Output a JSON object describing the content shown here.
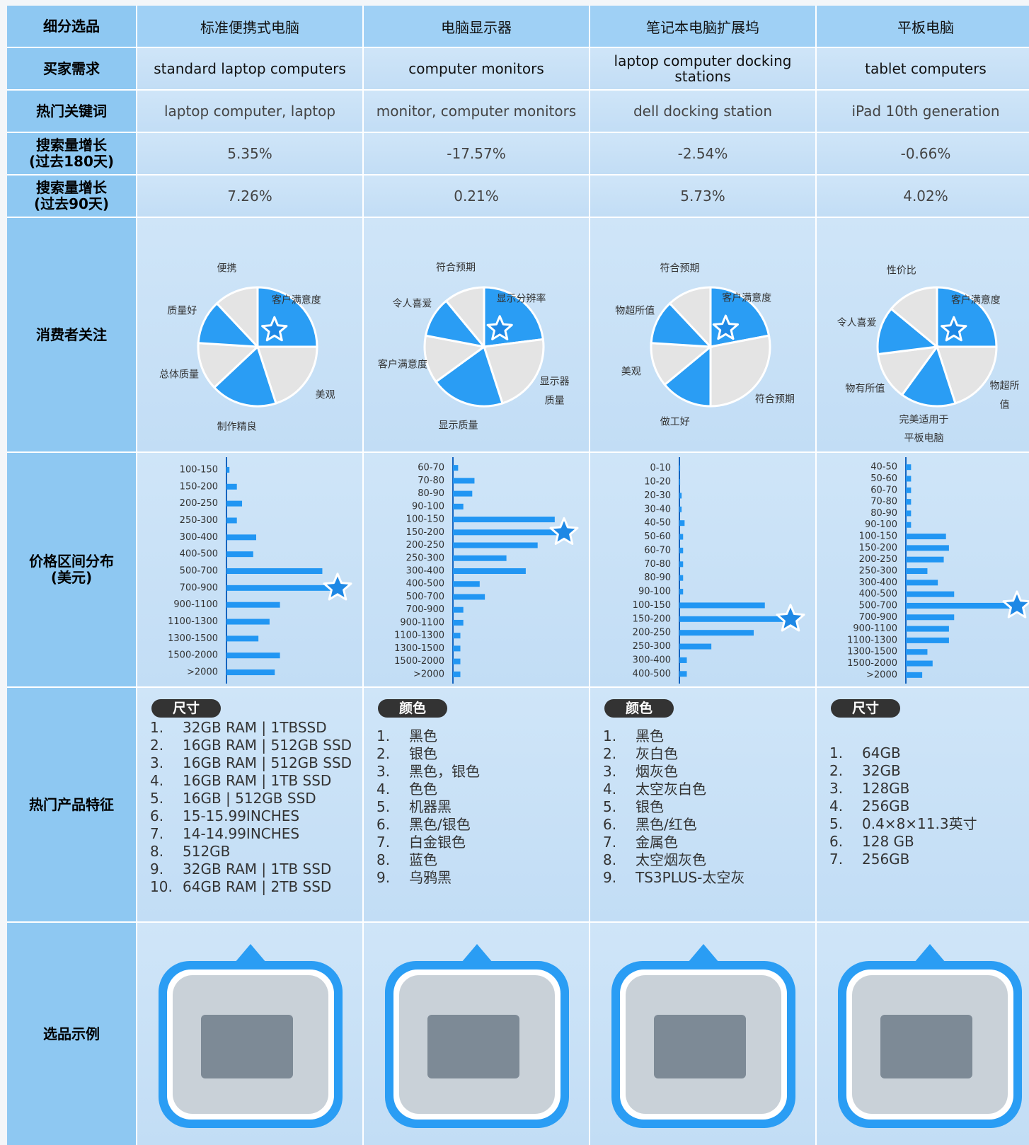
{
  "table": {
    "row_headers": [
      "细分选品",
      "买家需求",
      "热门关键词",
      "搜索量增长\n(过去180天)",
      "搜索量增长\n(过去90天)",
      "消费者关注",
      "价格区间分布\n(美元)",
      "热门产品特征",
      "选品示例"
    ],
    "columns": [
      {
        "name": "标准便携式电脑",
        "buyer_need": "standard laptop computers",
        "keyword": "laptop computer, laptop",
        "growth_180": "5.35%",
        "growth_90": "7.26%",
        "pie": {
          "type": "pie",
          "labels": [
            "客户满意度",
            "美观",
            "制作精良",
            "总体质量",
            "质量好",
            "便携"
          ],
          "values": [
            25,
            20,
            18,
            13,
            12,
            12
          ],
          "colors": [
            "#2a9df4",
            "#e4e4e4",
            "#2a9df4",
            "#e4e4e4",
            "#2a9df4",
            "#e4e4e4"
          ],
          "highlight": 0
        },
        "price": {
          "type": "bar",
          "categories": [
            "100-150",
            "150-200",
            "200-250",
            "250-300",
            "300-400",
            "400-500",
            "500-700",
            "700-900",
            "900-1100",
            "1100-1300",
            "1300-1500",
            "1500-2000",
            ">2000"
          ],
          "values": [
            4,
            14,
            21,
            14,
            40,
            36,
            129,
            140,
            72,
            58,
            43,
            72,
            65
          ],
          "color": "#2196f3",
          "highlight": 7
        },
        "features": {
          "title": "尺寸",
          "items": [
            [
              "1.",
              "32GB RAM | 1TBSSD"
            ],
            [
              "2.",
              "16GB RAM | 512GB SSD"
            ],
            [
              "3.",
              "16GB RAM | 512GB SSD"
            ],
            [
              "4.",
              "16GB RAM | 1TB SSD"
            ],
            [
              "5.",
              "16GB | 512GB SSD"
            ],
            [
              "6.",
              "15-15.99INCHES"
            ],
            [
              "7.",
              "14-14.99INCHES"
            ],
            [
              "8.",
              "512GB"
            ],
            [
              "9.",
              "32GB RAM | 1TB SSD"
            ],
            [
              "10.",
              "64GB RAM | 2TB SSD"
            ]
          ]
        }
      },
      {
        "name": "电脑显示器",
        "buyer_need": "computer monitors",
        "keyword": "monitor, computer monitors",
        "growth_180": "-17.57%",
        "growth_90": "0.21%",
        "pie": {
          "type": "pie",
          "labels": [
            "显示分辨率",
            "显示器质量",
            "显示质量",
            "客户满意度",
            "令人喜爱",
            "符合预期"
          ],
          "values": [
            23,
            22,
            20,
            13,
            11,
            11
          ],
          "colors": [
            "#2a9df4",
            "#e4e4e4",
            "#2a9df4",
            "#e4e4e4",
            "#2a9df4",
            "#e4e4e4"
          ],
          "highlight": 0
        },
        "price": {
          "type": "bar",
          "categories": [
            "60-70",
            "70-80",
            "80-90",
            "90-100",
            "100-150",
            "150-200",
            "200-250",
            "250-300",
            "300-400",
            "400-500",
            "500-700",
            "700-900",
            "900-1100",
            "1100-1300",
            "1300-1500",
            "1500-2000",
            ">2000"
          ],
          "values": [
            7,
            29,
            26,
            14,
            137,
            140,
            114,
            72,
            98,
            36,
            43,
            14,
            14,
            10,
            10,
            10,
            10
          ],
          "color": "#2196f3",
          "highlight": 5
        },
        "features": {
          "title": "颜色",
          "items": [
            [
              "1.",
              "黑色"
            ],
            [
              "2.",
              "银色"
            ],
            [
              "3.",
              "黑色，银色"
            ],
            [
              "4.",
              "色色"
            ],
            [
              "5.",
              "机器黑"
            ],
            [
              "6.",
              "黑色/银色"
            ],
            [
              "7.",
              "白金银色"
            ],
            [
              "8.",
              "蓝色"
            ],
            [
              "9.",
              "乌鸦黑"
            ]
          ]
        }
      },
      {
        "name": "笔记本电脑扩展坞",
        "buyer_need": "laptop computer docking stations",
        "keyword": "dell docking station",
        "growth_180": "-2.54%",
        "growth_90": "5.73%",
        "pie": {
          "type": "pie",
          "labels": [
            "客户满意度",
            "符合预期",
            "做工好",
            "美观",
            "物超所值",
            "符合预期"
          ],
          "values": [
            22,
            28,
            14,
            12,
            12,
            12
          ],
          "colors": [
            "#2a9df4",
            "#e4e4e4",
            "#2a9df4",
            "#e4e4e4",
            "#2a9df4",
            "#e4e4e4"
          ],
          "highlight": 0
        },
        "price": {
          "type": "bar",
          "categories": [
            "0-10",
            "10-20",
            "20-30",
            "30-40",
            "40-50",
            "50-60",
            "60-70",
            "70-80",
            "80-90",
            "90-100",
            "100-150",
            "150-200",
            "200-250",
            "250-300",
            "300-400",
            "400-500"
          ],
          "values": [
            1,
            1,
            3,
            3,
            7,
            5,
            5,
            5,
            5,
            5,
            115,
            140,
            100,
            43,
            10,
            10
          ],
          "color": "#2196f3",
          "highlight": 11
        },
        "features": {
          "title": "颜色",
          "items": [
            [
              "1.",
              "黑色"
            ],
            [
              "2.",
              "灰白色"
            ],
            [
              "3.",
              "烟灰色"
            ],
            [
              "4.",
              "太空灰白色"
            ],
            [
              "5.",
              "银色"
            ],
            [
              "6.",
              "黑色/红色"
            ],
            [
              "7.",
              "金属色"
            ],
            [
              "8.",
              "太空烟灰色"
            ],
            [
              "9.",
              "TS3PLUS-太空灰"
            ]
          ]
        }
      },
      {
        "name": "平板电脑",
        "buyer_need": "tablet computers",
        "keyword": "iPad 10th generation",
        "growth_180": "-0.66%",
        "growth_90": "4.02%",
        "pie": {
          "type": "pie",
          "labels": [
            "客户满意度",
            "物超所值",
            "完美适用于\n平板电脑",
            "物有所值",
            "令人喜爱",
            "性价比"
          ],
          "values": [
            25,
            20,
            15,
            13,
            13,
            14
          ],
          "colors": [
            "#2a9df4",
            "#e4e4e4",
            "#2a9df4",
            "#e4e4e4",
            "#2a9df4",
            "#e4e4e4"
          ],
          "highlight": 0
        },
        "price": {
          "type": "bar",
          "categories": [
            "40-50",
            "50-60",
            "60-70",
            "70-80",
            "80-90",
            "90-100",
            "100-150",
            "150-200",
            "200-250",
            "250-300",
            "300-400",
            "400-500",
            "500-700",
            "700-900",
            "900-1100",
            "1100-1300",
            "1300-1500",
            "1500-2000",
            ">2000"
          ],
          "values": [
            7,
            7,
            7,
            7,
            7,
            7,
            54,
            58,
            51,
            29,
            43,
            65,
            140,
            65,
            58,
            58,
            29,
            36,
            22
          ],
          "color": "#2196f3",
          "highlight": 12
        },
        "features": {
          "title": "尺寸",
          "items": [
            [
              "1.",
              "64GB"
            ],
            [
              "2.",
              "32GB"
            ],
            [
              "3.",
              "128GB"
            ],
            [
              "4.",
              "256GB"
            ],
            [
              "5.",
              "0.4×8×11.3英寸"
            ],
            [
              "6.",
              "128 GB"
            ],
            [
              "7.",
              "256GB"
            ]
          ]
        }
      }
    ]
  }
}
